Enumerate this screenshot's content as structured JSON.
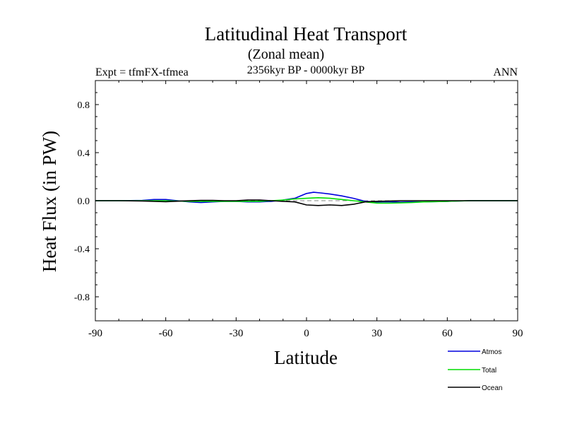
{
  "header": {
    "title": "Latitudinal Heat Transport",
    "subtitle": "(Zonal mean)",
    "experiment": "Expt = tfmFX-tfmea",
    "period": "2356kyr BP - 0000kyr BP",
    "season": "ANN"
  },
  "chart_data": {
    "type": "line",
    "title": "Latitudinal Heat Transport",
    "subtitle": "(Zonal mean)",
    "xlabel": "Latitude",
    "ylabel": "Heat Flux (in PW)",
    "xlim": [
      -90,
      90
    ],
    "ylim": [
      -1.0,
      1.0
    ],
    "x_ticks": [
      -90,
      -60,
      -30,
      0,
      30,
      60,
      90
    ],
    "x_tick_labels": [
      "-90",
      "-60",
      "-30",
      "0",
      "30",
      "60",
      "90"
    ],
    "y_ticks": [
      -0.8,
      -0.4,
      0.0,
      0.4,
      0.8
    ],
    "y_tick_labels": [
      "-0.8",
      "-0.4",
      "0.0",
      "0.4",
      "0.8"
    ],
    "zero_line": true,
    "legend_position": "bottom-right",
    "colors": {
      "Atmos": "#0000dd",
      "Total": "#00dd00",
      "Ocean": "#000000",
      "zero": "#888888"
    },
    "series": [
      {
        "name": "Atmos",
        "x": [
          -90,
          -80,
          -70,
          -65,
          -60,
          -55,
          -50,
          -45,
          -40,
          -35,
          -30,
          -25,
          -20,
          -15,
          -10,
          -5,
          0,
          3,
          6,
          10,
          15,
          20,
          25,
          30,
          35,
          40,
          45,
          50,
          60,
          70,
          80,
          90
        ],
        "y": [
          0.0,
          0.0,
          0.003,
          0.01,
          0.01,
          0.0,
          -0.01,
          -0.015,
          -0.01,
          -0.005,
          -0.005,
          -0.01,
          -0.01,
          -0.005,
          0.005,
          0.02,
          0.06,
          0.07,
          0.065,
          0.055,
          0.04,
          0.02,
          -0.005,
          -0.01,
          -0.008,
          -0.012,
          -0.01,
          -0.01,
          -0.005,
          0.0,
          0.0,
          0.0
        ]
      },
      {
        "name": "Total",
        "x": [
          -90,
          -80,
          -70,
          -60,
          -50,
          -40,
          -30,
          -20,
          -15,
          -10,
          -5,
          0,
          5,
          10,
          15,
          20,
          25,
          30,
          35,
          40,
          45,
          50,
          60,
          70,
          80,
          90
        ],
        "y": [
          0.0,
          0.0,
          0.0,
          0.0,
          -0.005,
          -0.005,
          -0.005,
          -0.005,
          0.0,
          0.005,
          0.015,
          0.02,
          0.025,
          0.02,
          0.01,
          0.0,
          -0.01,
          -0.02,
          -0.02,
          -0.018,
          -0.015,
          -0.01,
          -0.005,
          0.0,
          0.0,
          0.0
        ]
      },
      {
        "name": "Ocean",
        "x": [
          -90,
          -80,
          -70,
          -60,
          -50,
          -45,
          -40,
          -35,
          -30,
          -25,
          -20,
          -15,
          -10,
          -5,
          0,
          5,
          10,
          15,
          20,
          25,
          30,
          40,
          50,
          60,
          70,
          80,
          90
        ],
        "y": [
          0.0,
          0.0,
          -0.003,
          -0.008,
          0.0,
          0.003,
          0.003,
          0.0,
          0.0,
          0.005,
          0.005,
          0.0,
          -0.005,
          -0.01,
          -0.035,
          -0.04,
          -0.035,
          -0.04,
          -0.03,
          -0.01,
          -0.005,
          0.0,
          0.0,
          0.0,
          0.0,
          0.0,
          0.0
        ]
      }
    ]
  }
}
